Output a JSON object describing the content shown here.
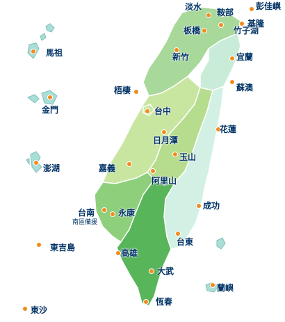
{
  "colors": {
    "dot": "#f08c1e",
    "label": "#003366",
    "north": "#a8d89a",
    "northeast": "#c9ecd8",
    "central_west": "#c8e6a0",
    "central_mountain": "#b6dc8e",
    "east": "#d2f0e4",
    "southwest": "#8dcf7a",
    "south": "#58b55a",
    "island": "#a9ddd7"
  },
  "places": [
    {
      "name": "淡水"
    },
    {
      "name": "鞍部"
    },
    {
      "name": "彭佳嶼"
    },
    {
      "name": "板橋"
    },
    {
      "name": "竹子湖"
    },
    {
      "name": "基隆"
    },
    {
      "name": "馬祖"
    },
    {
      "name": "新竹"
    },
    {
      "name": "宜蘭"
    },
    {
      "name": "梧棲"
    },
    {
      "name": "蘇澳"
    },
    {
      "name": "台中"
    },
    {
      "name": "金門"
    },
    {
      "name": "花蓮"
    },
    {
      "name": "日月潭"
    },
    {
      "name": "玉山"
    },
    {
      "name": "澎湖"
    },
    {
      "name": "嘉義"
    },
    {
      "name": "阿里山"
    },
    {
      "name": "成功"
    },
    {
      "name": "台南"
    },
    {
      "name": "南區備援"
    },
    {
      "name": "永康"
    },
    {
      "name": "台東"
    },
    {
      "name": "東吉島"
    },
    {
      "name": "高雄"
    },
    {
      "name": "大武"
    },
    {
      "name": "蘭嶼"
    },
    {
      "name": "東沙"
    },
    {
      "name": "恆春"
    }
  ]
}
